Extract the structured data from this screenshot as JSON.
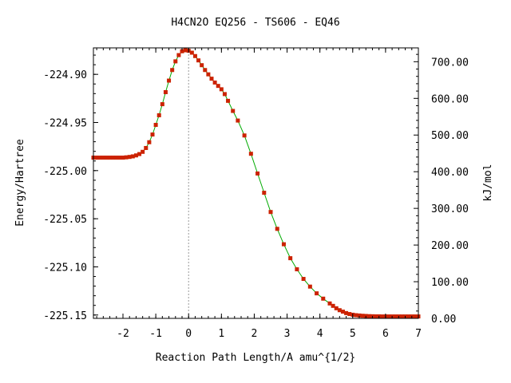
{
  "chart_data": {
    "type": "scatter",
    "title": "H4CN2O   EQ256 - TS606 - EQ46",
    "xlabel": "Reaction Path Length/A amu^{1/2}",
    "ylabel": "Energy/Hartree",
    "y2label": "kJ/mol",
    "xlim": [
      -2.9,
      7.0
    ],
    "ylim": [
      -225.1535,
      -224.8725
    ],
    "y2lim": [
      0,
      737.75
    ],
    "x_ticks": [
      -2,
      -1,
      0,
      1,
      2,
      3,
      4,
      5,
      6,
      7
    ],
    "x_tick_labels": [
      "-2",
      "-1",
      "0",
      "1",
      "2",
      "3",
      "4",
      "5",
      "6",
      "7"
    ],
    "y_ticks": [
      -224.9,
      -224.95,
      -225.0,
      -225.05,
      -225.1,
      -225.15
    ],
    "y_tick_labels": [
      "-224.90",
      "-224.95",
      "-225.00",
      "-225.05",
      "-225.10",
      "-225.15"
    ],
    "y2_ticks": [
      0,
      100,
      200,
      300,
      400,
      500,
      600,
      700
    ],
    "y2_tick_labels": [
      "0.00",
      "100.00",
      "200.00",
      "300.00",
      "400.00",
      "500.00",
      "600.00",
      "700.00"
    ],
    "ts_marker_x": 0,
    "grid": false,
    "colors": {
      "points": "#cc2200",
      "curve": "#00aa00",
      "ts_line": "#999999",
      "axes": "#000000"
    },
    "series": [
      {
        "x": [
          -2.9,
          -2.8,
          -2.7,
          -2.6,
          -2.5,
          -2.4,
          -2.3,
          -2.2,
          -2.1,
          -2.0,
          -1.9,
          -1.8,
          -1.7,
          -1.6,
          -1.5,
          -1.4,
          -1.3,
          -1.2,
          -1.1,
          -1.0,
          -0.9,
          -0.8,
          -0.7,
          -0.6,
          -0.5,
          -0.4,
          -0.3,
          -0.2,
          -0.1,
          0.0,
          0.1,
          0.2,
          0.3,
          0.4,
          0.5,
          0.6,
          0.7,
          0.8,
          0.9,
          1.0,
          1.1,
          1.2,
          1.35,
          1.5,
          1.7,
          1.9,
          2.1,
          2.3,
          2.5,
          2.7,
          2.9,
          3.1,
          3.3,
          3.5,
          3.7,
          3.9,
          4.1,
          4.3,
          4.4,
          4.5,
          4.6,
          4.7,
          4.8,
          4.9,
          5.0,
          5.1,
          5.2,
          5.3,
          5.4,
          5.5,
          5.6,
          5.7,
          5.8,
          5.9,
          6.0,
          6.1,
          6.2,
          6.3,
          6.4,
          6.5,
          6.6,
          6.7,
          6.8,
          6.9,
          7.0
        ],
        "y": [
          -224.9865,
          -224.9865,
          -224.9865,
          -224.9865,
          -224.9865,
          -224.9865,
          -224.9865,
          -224.9865,
          -224.9865,
          -224.9865,
          -224.9862,
          -224.9858,
          -224.9852,
          -224.9842,
          -224.9828,
          -224.9805,
          -224.9765,
          -224.9705,
          -224.9625,
          -224.9525,
          -224.9425,
          -224.931,
          -224.9185,
          -224.9065,
          -224.8955,
          -224.8865,
          -224.88,
          -224.876,
          -224.875,
          -224.8755,
          -224.8775,
          -224.881,
          -224.8855,
          -224.8905,
          -224.8955,
          -224.9,
          -224.9045,
          -224.9085,
          -224.912,
          -224.9155,
          -224.9205,
          -224.9275,
          -224.938,
          -224.948,
          -224.9635,
          -224.9825,
          -225.003,
          -225.023,
          -225.043,
          -225.0605,
          -225.0765,
          -225.091,
          -225.1025,
          -225.1125,
          -225.1205,
          -225.1275,
          -225.133,
          -225.138,
          -225.1405,
          -225.143,
          -225.145,
          -225.1465,
          -225.148,
          -225.149,
          -225.1497,
          -225.1502,
          -225.1505,
          -225.1508,
          -225.151,
          -225.1512,
          -225.1513,
          -225.1514,
          -225.1514,
          -225.1515,
          -225.1515,
          -225.1515,
          -225.1515,
          -225.1515,
          -225.1515,
          -225.1515,
          -225.1515,
          -225.1515,
          -225.1515,
          -225.1515,
          -225.1515
        ]
      }
    ]
  }
}
